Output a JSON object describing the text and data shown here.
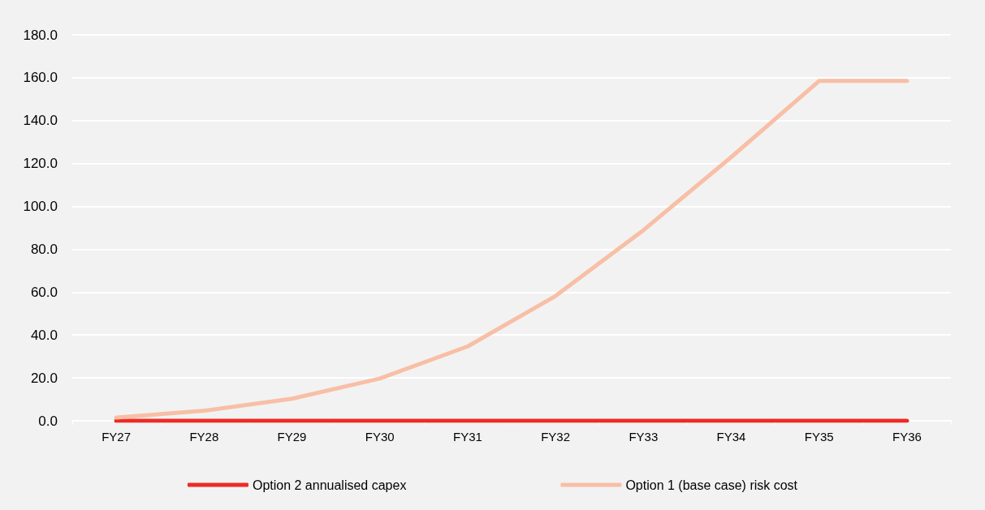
{
  "chart_data": {
    "type": "line",
    "categories": [
      "FY27",
      "FY28",
      "FY29",
      "FY30",
      "FY31",
      "FY32",
      "FY33",
      "FY34",
      "FY35",
      "FY36"
    ],
    "series": [
      {
        "name": "Option 2 annualised capex",
        "color": "#ee2a24",
        "values": [
          0,
          0,
          0,
          0,
          0,
          0,
          0,
          0,
          0,
          0
        ]
      },
      {
        "name": "Option 1 (base case) risk cost",
        "color": "#f8bfa6",
        "values": [
          1.5,
          4.7,
          10.3,
          19.7,
          34.7,
          58.2,
          88.9,
          123,
          158.5,
          158.5
        ]
      }
    ],
    "ylim": [
      0,
      180
    ],
    "yticks": [
      {
        "value": 0,
        "label": "0.0"
      },
      {
        "value": 20,
        "label": "20.0"
      },
      {
        "value": 40,
        "label": "40.0"
      },
      {
        "value": 60,
        "label": "60.0"
      },
      {
        "value": 80,
        "label": "80.0"
      },
      {
        "value": 100,
        "label": "100.0"
      },
      {
        "value": 120,
        "label": "120.0"
      },
      {
        "value": 140,
        "label": "140.0"
      },
      {
        "value": 160,
        "label": "160.0"
      },
      {
        "value": 180,
        "label": "180.0"
      }
    ],
    "grid": "y",
    "legend": "bottom",
    "marker": "none",
    "line_style": "solid"
  }
}
